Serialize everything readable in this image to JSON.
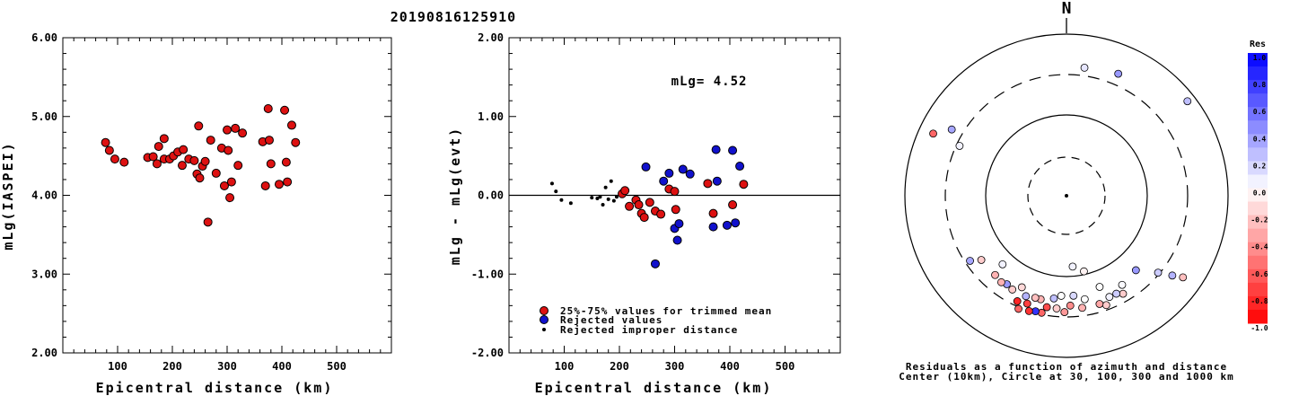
{
  "title": "20190816125910",
  "panel1": {
    "xlabel": "Epicentral distance (km)",
    "ylabel": "mLg(IASPEI)",
    "xticks": [
      100,
      200,
      300,
      400,
      500
    ],
    "yticks": [
      "2.00",
      "3.00",
      "4.00",
      "5.00",
      "6.00"
    ]
  },
  "panel2": {
    "xlabel": "Epicentral distance (km)",
    "ylabel": "mLg - mLg(evt)",
    "xticks": [
      100,
      200,
      300,
      400,
      500
    ],
    "yticks": [
      "-2.00",
      "-1.00",
      "0.00",
      "1.00",
      "2.00"
    ],
    "annotation": "mLg= 4.52",
    "legend": [
      {
        "label": "25%-75% values for trimmed mean",
        "color": "#dd1111"
      },
      {
        "label": "Rejected values",
        "color": "#1111cc"
      },
      {
        "label": "Rejected improper distance",
        "color": "#000000"
      }
    ]
  },
  "panel3": {
    "north_label": "N",
    "caption_line1": "Residuals as a function of azimuth and distance",
    "caption_line2": "Center (10km), Circle at 30, 100, 300 and 1000 km",
    "colorbar_title": "Res",
    "colorbar_ticks": [
      "1.0",
      "0.8",
      "0.6",
      "0.4",
      "0.2",
      "0.0",
      "-0.2",
      "-0.4",
      "-0.6",
      "-0.8",
      "-1.0"
    ]
  },
  "colors": {
    "accepted": "#dd1111",
    "rejected": "#1111cc",
    "improper": "#000000"
  },
  "chart_data": [
    {
      "type": "scatter",
      "title": "20190816125910",
      "xlabel": "Epicentral distance (km)",
      "ylabel": "mLg(IASPEI)",
      "xlim": [
        0,
        600
      ],
      "ylim": [
        2.0,
        6.0
      ],
      "series": [
        {
          "points": [
            [
              78,
              4.67
            ],
            [
              85,
              4.57
            ],
            [
              95,
              4.46
            ],
            [
              112,
              4.42
            ],
            [
              155,
              4.48
            ],
            [
              165,
              4.49
            ],
            [
              172,
              4.4
            ],
            [
              175,
              4.62
            ],
            [
              185,
              4.72
            ],
            [
              185,
              4.46
            ],
            [
              195,
              4.46
            ],
            [
              202,
              4.5
            ],
            [
              210,
              4.55
            ],
            [
              220,
              4.58
            ],
            [
              218,
              4.38
            ],
            [
              230,
              4.46
            ],
            [
              240,
              4.44
            ],
            [
              245,
              4.27
            ],
            [
              248,
              4.88
            ],
            [
              250,
              4.22
            ],
            [
              255,
              4.37
            ],
            [
              260,
              4.43
            ],
            [
              265,
              3.66
            ],
            [
              270,
              4.7
            ],
            [
              280,
              4.28
            ],
            [
              290,
              4.6
            ],
            [
              295,
              4.12
            ],
            [
              300,
              4.83
            ],
            [
              302,
              4.57
            ],
            [
              305,
              3.97
            ],
            [
              308,
              4.17
            ],
            [
              315,
              4.85
            ],
            [
              320,
              4.38
            ],
            [
              328,
              4.79
            ],
            [
              365,
              4.68
            ],
            [
              370,
              4.12
            ],
            [
              375,
              5.1
            ],
            [
              377,
              4.7
            ],
            [
              380,
              4.4
            ],
            [
              395,
              4.14
            ],
            [
              405,
              5.08
            ],
            [
              408,
              4.42
            ],
            [
              410,
              4.17
            ],
            [
              418,
              4.89
            ],
            [
              425,
              4.67
            ]
          ]
        }
      ]
    },
    {
      "type": "scatter",
      "xlabel": "Epicentral distance (km)",
      "ylabel": "mLg - mLg(evt)",
      "xlim": [
        0,
        600
      ],
      "ylim": [
        -2.0,
        2.0
      ],
      "reference_line": 0.0,
      "annotation": "mLg= 4.52",
      "series": [
        {
          "name": "25%-75% values for trimmed mean",
          "points": [
            [
              205,
              0.02
            ],
            [
              210,
              0.06
            ],
            [
              218,
              -0.14
            ],
            [
              230,
              -0.06
            ],
            [
              235,
              -0.12
            ],
            [
              240,
              -0.23
            ],
            [
              245,
              -0.28
            ],
            [
              255,
              -0.09
            ],
            [
              265,
              -0.2
            ],
            [
              275,
              -0.24
            ],
            [
              290,
              0.08
            ],
            [
              300,
              0.05
            ],
            [
              302,
              -0.18
            ],
            [
              360,
              0.15
            ],
            [
              370,
              -0.23
            ],
            [
              405,
              -0.12
            ],
            [
              425,
              0.14
            ]
          ]
        },
        {
          "name": "Rejected values",
          "points": [
            [
              248,
              0.36
            ],
            [
              265,
              -0.87
            ],
            [
              280,
              0.18
            ],
            [
              290,
              0.28
            ],
            [
              300,
              -0.42
            ],
            [
              305,
              -0.57
            ],
            [
              308,
              -0.36
            ],
            [
              315,
              0.33
            ],
            [
              328,
              0.27
            ],
            [
              370,
              -0.4
            ],
            [
              375,
              0.58
            ],
            [
              377,
              0.18
            ],
            [
              395,
              -0.38
            ],
            [
              405,
              0.57
            ],
            [
              410,
              -0.35
            ],
            [
              418,
              0.37
            ]
          ]
        },
        {
          "name": "Rejected improper distance",
          "points": [
            [
              78,
              0.15
            ],
            [
              85,
              0.05
            ],
            [
              95,
              -0.06
            ],
            [
              112,
              -0.1
            ],
            [
              150,
              -0.03
            ],
            [
              160,
              -0.04
            ],
            [
              165,
              -0.02
            ],
            [
              170,
              -0.12
            ],
            [
              175,
              0.1
            ],
            [
              180,
              -0.05
            ],
            [
              185,
              0.18
            ],
            [
              190,
              -0.07
            ],
            [
              195,
              -0.02
            ]
          ]
        }
      ]
    }
  ],
  "polar_points": [
    {
      "az": 8,
      "r": 0.8,
      "res": 0.1
    },
    {
      "az": 23,
      "r": 0.82,
      "res": 0.4
    },
    {
      "az": 52,
      "r": 0.95,
      "res": 0.25
    },
    {
      "az": 295,
      "r": 0.73,
      "res": 0.05
    },
    {
      "az": 300,
      "r": 0.82,
      "res": 0.35
    },
    {
      "az": 295,
      "r": 0.91,
      "res": -0.6
    },
    {
      "az": 125,
      "r": 0.88,
      "res": -0.25
    },
    {
      "az": 127,
      "r": 0.82,
      "res": 0.3
    },
    {
      "az": 130,
      "r": 0.74,
      "res": 0.2
    },
    {
      "az": 137,
      "r": 0.63,
      "res": 0.4
    },
    {
      "az": 160,
      "r": 0.6,
      "res": 0.0
    },
    {
      "az": 175,
      "r": 0.44,
      "res": 0.05
    },
    {
      "az": 167,
      "r": 0.48,
      "res": -0.05
    },
    {
      "az": 148,
      "r": 0.65,
      "res": 0.02
    },
    {
      "az": 150,
      "r": 0.7,
      "res": -0.2
    },
    {
      "az": 153,
      "r": 0.68,
      "res": 0.2
    },
    {
      "az": 157,
      "r": 0.68,
      "res": 0.05
    },
    {
      "az": 160,
      "r": 0.72,
      "res": -0.2
    },
    {
      "az": 163,
      "r": 0.7,
      "res": -0.35
    },
    {
      "az": 170,
      "r": 0.65,
      "res": 0.0
    },
    {
      "az": 172,
      "r": 0.7,
      "res": -0.3
    },
    {
      "az": 176,
      "r": 0.62,
      "res": 0.15
    },
    {
      "az": 178,
      "r": 0.68,
      "res": -0.45
    },
    {
      "az": 181,
      "r": 0.72,
      "res": -0.4
    },
    {
      "az": 183,
      "r": 0.62,
      "res": 0.0
    },
    {
      "az": 187,
      "r": 0.64,
      "res": 0.25
    },
    {
      "az": 185,
      "r": 0.7,
      "res": -0.2
    },
    {
      "az": 190,
      "r": 0.7,
      "res": -0.7
    },
    {
      "az": 192,
      "r": 0.74,
      "res": -0.6
    },
    {
      "az": 194,
      "r": 0.66,
      "res": -0.3
    },
    {
      "az": 195,
      "r": 0.74,
      "res": 0.8
    },
    {
      "az": 197,
      "r": 0.66,
      "res": -0.25
    },
    {
      "az": 198,
      "r": 0.75,
      "res": -0.8
    },
    {
      "az": 200,
      "r": 0.71,
      "res": -0.75
    },
    {
      "az": 202,
      "r": 0.67,
      "res": 0.3
    },
    {
      "az": 203,
      "r": 0.76,
      "res": -0.6
    },
    {
      "az": 205,
      "r": 0.72,
      "res": -0.85
    },
    {
      "az": 206,
      "r": 0.63,
      "res": -0.15
    },
    {
      "az": 210,
      "r": 0.67,
      "res": -0.2
    },
    {
      "az": 214,
      "r": 0.66,
      "res": 0.4
    },
    {
      "az": 217,
      "r": 0.67,
      "res": -0.3
    },
    {
      "az": 222,
      "r": 0.66,
      "res": -0.3
    },
    {
      "az": 223,
      "r": 0.58,
      "res": 0.05
    },
    {
      "az": 233,
      "r": 0.66,
      "res": -0.2
    },
    {
      "az": 236,
      "r": 0.72,
      "res": 0.35
    }
  ]
}
